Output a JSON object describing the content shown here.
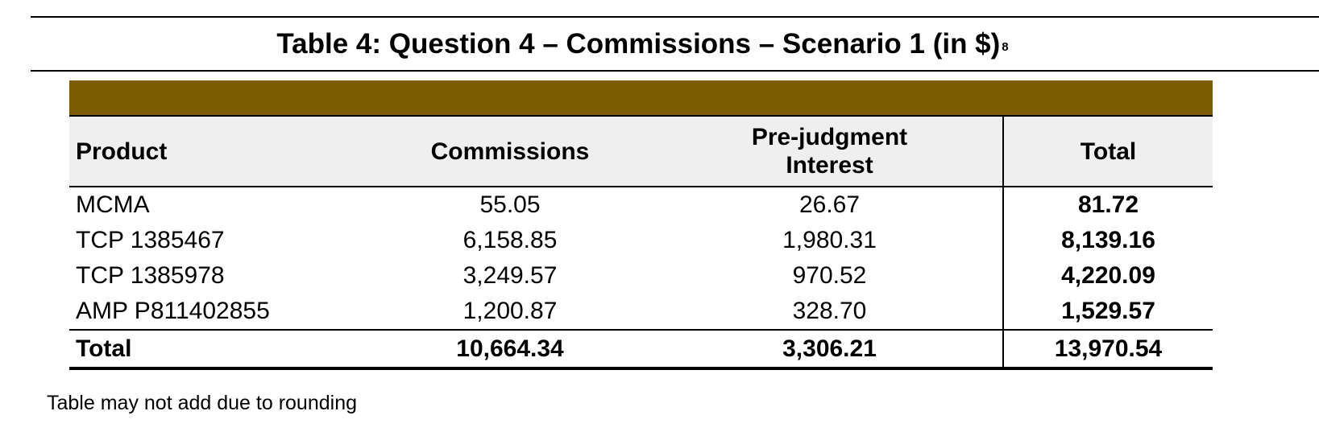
{
  "title": {
    "text": "Table 4: Question 4 – Commissions – Scenario 1 (in $)",
    "footnote_marker": "8"
  },
  "colors": {
    "band": "#7b5c00",
    "header_bg": "#efefef",
    "text": "#000000"
  },
  "table": {
    "headers": {
      "product": "Product",
      "commissions": "Commissions",
      "prejudgment_line1": "Pre-judgment",
      "prejudgment_line2": "Interest",
      "total": "Total"
    },
    "rows": [
      {
        "product": "MCMA",
        "commissions": "55.05",
        "prejudgment": "26.67",
        "total": "81.72"
      },
      {
        "product": "TCP 1385467",
        "commissions": "6,158.85",
        "prejudgment": "1,980.31",
        "total": "8,139.16"
      },
      {
        "product": "TCP 1385978",
        "commissions": "3,249.57",
        "prejudgment": "970.52",
        "total": "4,220.09"
      },
      {
        "product": "AMP P811402855",
        "commissions": "1,200.87",
        "prejudgment": "328.70",
        "total": "1,529.57"
      }
    ],
    "total_row": {
      "product": "Total",
      "commissions": "10,664.34",
      "prejudgment": "3,306.21",
      "total": "13,970.54"
    }
  },
  "footnote": "Table may not add due to rounding"
}
